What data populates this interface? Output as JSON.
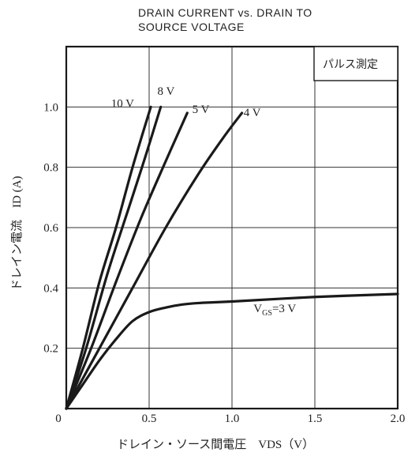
{
  "chart_data": {
    "type": "line",
    "title_lines": [
      "DRAIN CURRENT vs. DRAIN TO",
      "SOURCE VOLTAGE"
    ],
    "xlabel": "ドレイン・ソース間電圧　VDS（V）",
    "ylabel": "ドレイン電流　ID (A)",
    "xlim": [
      0,
      2.0
    ],
    "ylim": [
      0,
      1.2
    ],
    "x_ticks": [
      "0",
      "0.5",
      "1.0",
      "1.5",
      "2.0"
    ],
    "y_ticks": [
      "0.2",
      "0.4",
      "0.6",
      "0.8",
      "1.0"
    ],
    "grid": true,
    "note_box": "パルス測定",
    "series": [
      {
        "name": "10 V",
        "x": [
          0.0,
          0.1,
          0.2,
          0.3,
          0.4,
          0.51
        ],
        "y": [
          0.0,
          0.2,
          0.42,
          0.6,
          0.8,
          1.0
        ]
      },
      {
        "name": "8 V",
        "x": [
          0.0,
          0.12,
          0.25,
          0.38,
          0.48,
          0.57
        ],
        "y": [
          0.0,
          0.2,
          0.45,
          0.67,
          0.84,
          1.0
        ]
      },
      {
        "name": "5 V",
        "x": [
          0.0,
          0.15,
          0.3,
          0.45,
          0.6,
          0.73
        ],
        "y": [
          0.0,
          0.2,
          0.42,
          0.63,
          0.82,
          0.98
        ]
      },
      {
        "name": "4 V",
        "x": [
          0.0,
          0.2,
          0.4,
          0.6,
          0.8,
          0.95,
          1.06
        ],
        "y": [
          0.0,
          0.2,
          0.4,
          0.6,
          0.78,
          0.9,
          0.98
        ]
      },
      {
        "name": "VGS=3 V",
        "x": [
          0.0,
          0.1,
          0.2,
          0.3,
          0.4,
          0.5,
          0.6,
          0.7,
          0.8,
          1.0,
          1.5,
          2.0
        ],
        "y": [
          0.0,
          0.08,
          0.16,
          0.23,
          0.29,
          0.32,
          0.335,
          0.345,
          0.35,
          0.355,
          0.37,
          0.38
        ]
      }
    ],
    "labels": {
      "10 V": "10 V",
      "8 V": "8 V",
      "5 V": "5 V",
      "4 V": "4 V",
      "VGS=3 V": {
        "main": "V",
        "sub": "GS",
        "rest": "=3 V"
      }
    }
  }
}
